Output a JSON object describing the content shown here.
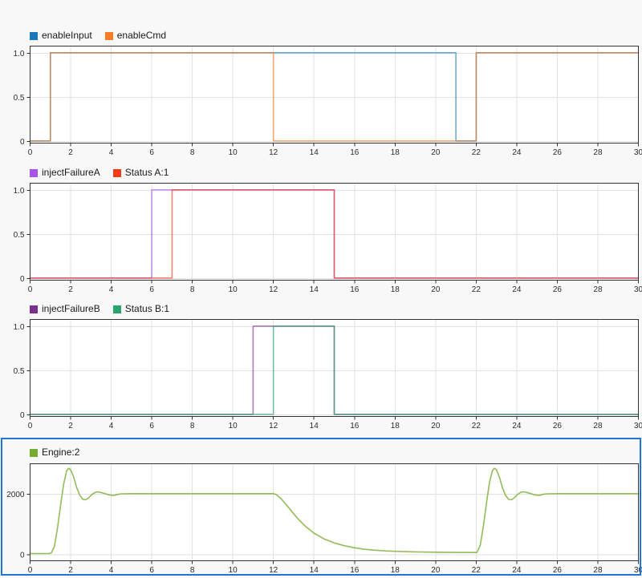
{
  "window": {
    "background": "#f8f8f8",
    "plot_background": "#ffffff",
    "selection_color": "#2374d9",
    "selected_chart": "Engine:2"
  },
  "x_axis": {
    "min": 0,
    "max": 30,
    "ticks": [
      0,
      2,
      4,
      6,
      8,
      10,
      12,
      14,
      16,
      18,
      20,
      22,
      24,
      26,
      28,
      30
    ],
    "tick_labels": [
      "0",
      "2",
      "4",
      "6",
      "8",
      "10",
      "12",
      "14",
      "16",
      "18",
      "20",
      "22",
      "24",
      "26",
      "28",
      "30"
    ]
  },
  "chart_data": [
    {
      "type": "line",
      "title": "enableInput / enableCmd",
      "selected": false,
      "legend": [
        {
          "label": "enableInput",
          "color": "#1878be"
        },
        {
          "label": "enableCmd",
          "color": "#f87b27"
        }
      ],
      "ylim": [
        -0.02,
        1.08
      ],
      "y_ticks": [
        {
          "value": 0,
          "label": "0"
        },
        {
          "value": 0.5,
          "label": "0.5"
        },
        {
          "value": 1,
          "label": "1.0"
        }
      ],
      "series": [
        {
          "name": "enableInput",
          "color": "#1878be",
          "opacity": 0.62,
          "points": [
            [
              0,
              0
            ],
            [
              1,
              0
            ],
            [
              1,
              1
            ],
            [
              21,
              1
            ],
            [
              21,
              0
            ],
            [
              22,
              0
            ],
            [
              22,
              1
            ],
            [
              30,
              1
            ]
          ]
        },
        {
          "name": "enableCmd",
          "color": "#f87b27",
          "opacity": 0.62,
          "points": [
            [
              0,
              0
            ],
            [
              1,
              0
            ],
            [
              1,
              1
            ],
            [
              12,
              1
            ],
            [
              12,
              0
            ],
            [
              22,
              0
            ],
            [
              22,
              1
            ],
            [
              30,
              1
            ]
          ]
        }
      ]
    },
    {
      "type": "line",
      "title": "injectFailureA / Status A:1",
      "selected": false,
      "legend": [
        {
          "label": "injectFailureA",
          "color": "#a953ef"
        },
        {
          "label": "Status A:1",
          "color": "#f23a16"
        }
      ],
      "ylim": [
        -0.02,
        1.08
      ],
      "y_ticks": [
        {
          "value": 0,
          "label": "0"
        },
        {
          "value": 0.5,
          "label": "0.5"
        },
        {
          "value": 1,
          "label": "1.0"
        }
      ],
      "series": [
        {
          "name": "injectFailureA",
          "color": "#a953ef",
          "opacity": 0.62,
          "points": [
            [
              0,
              0
            ],
            [
              6,
              0
            ],
            [
              6,
              1
            ],
            [
              15,
              1
            ],
            [
              15,
              0
            ],
            [
              30,
              0
            ]
          ]
        },
        {
          "name": "Status A:1",
          "color": "#f23a16",
          "opacity": 0.62,
          "points": [
            [
              0,
              0
            ],
            [
              7,
              0
            ],
            [
              7,
              1
            ],
            [
              15,
              1
            ],
            [
              15,
              0
            ],
            [
              30,
              0
            ]
          ]
        }
      ]
    },
    {
      "type": "line",
      "title": "injectFailureB / Status B:1",
      "selected": false,
      "legend": [
        {
          "label": "injectFailureB",
          "color": "#7b2f8e"
        },
        {
          "label": "Status B:1",
          "color": "#28a56d"
        }
      ],
      "ylim": [
        -0.02,
        1.08
      ],
      "y_ticks": [
        {
          "value": 0,
          "label": "0"
        },
        {
          "value": 0.5,
          "label": "0.5"
        },
        {
          "value": 1,
          "label": "1.0"
        }
      ],
      "series": [
        {
          "name": "injectFailureB",
          "color": "#7b2f8e",
          "opacity": 0.62,
          "points": [
            [
              0,
              0
            ],
            [
              11,
              0
            ],
            [
              11,
              1
            ],
            [
              15,
              1
            ],
            [
              15,
              0
            ],
            [
              30,
              0
            ]
          ]
        },
        {
          "name": "Status B:1",
          "color": "#28a56d",
          "opacity": 0.62,
          "points": [
            [
              0,
              0
            ],
            [
              12,
              0
            ],
            [
              12,
              1
            ],
            [
              15,
              1
            ],
            [
              15,
              0
            ],
            [
              30,
              0
            ]
          ]
        }
      ]
    },
    {
      "type": "line",
      "title": "Engine:2",
      "selected": true,
      "legend": [
        {
          "label": "Engine:2",
          "color": "#76ac2f"
        }
      ],
      "ylim": [
        -200,
        3000
      ],
      "y_ticks": [
        {
          "value": 0,
          "label": "0"
        },
        {
          "value": 2000,
          "label": "2000"
        }
      ],
      "series": [
        {
          "name": "Engine:2",
          "color": "#77ac30",
          "opacity": 0.8,
          "points": [
            [
              0,
              25
            ],
            [
              0.95,
              25
            ],
            [
              1.05,
              45
            ],
            [
              1.2,
              260
            ],
            [
              1.35,
              860
            ],
            [
              1.5,
              1600
            ],
            [
              1.65,
              2300
            ],
            [
              1.8,
              2750
            ],
            [
              1.9,
              2840
            ],
            [
              2.0,
              2790
            ],
            [
              2.15,
              2550
            ],
            [
              2.3,
              2200
            ],
            [
              2.45,
              1950
            ],
            [
              2.6,
              1815
            ],
            [
              2.75,
              1800
            ],
            [
              2.9,
              1870
            ],
            [
              3.05,
              1975
            ],
            [
              3.2,
              2040
            ],
            [
              3.35,
              2060
            ],
            [
              3.5,
              2040
            ],
            [
              3.7,
              2000
            ],
            [
              3.85,
              1965
            ],
            [
              4.0,
              1950
            ],
            [
              4.15,
              1945
            ],
            [
              4.3,
              1975
            ],
            [
              4.5,
              1995
            ],
            [
              5.0,
              2000
            ],
            [
              12.0,
              2000
            ],
            [
              12.15,
              1965
            ],
            [
              12.4,
              1820
            ],
            [
              12.8,
              1500
            ],
            [
              13.2,
              1180
            ],
            [
              13.6,
              910
            ],
            [
              14.0,
              700
            ],
            [
              14.5,
              505
            ],
            [
              15.0,
              375
            ],
            [
              15.5,
              285
            ],
            [
              16.0,
              215
            ],
            [
              16.5,
              165
            ],
            [
              17.0,
              135
            ],
            [
              17.5,
              112
            ],
            [
              18.0,
              98
            ],
            [
              19.0,
              80
            ],
            [
              20.0,
              70
            ],
            [
              21.0,
              63
            ],
            [
              22.0,
              60
            ],
            [
              22.05,
              72
            ],
            [
              22.2,
              300
            ],
            [
              22.35,
              900
            ],
            [
              22.5,
              1650
            ],
            [
              22.65,
              2350
            ],
            [
              22.8,
              2760
            ],
            [
              22.9,
              2840
            ],
            [
              23.0,
              2790
            ],
            [
              23.15,
              2540
            ],
            [
              23.3,
              2190
            ],
            [
              23.45,
              1945
            ],
            [
              23.6,
              1810
            ],
            [
              23.75,
              1800
            ],
            [
              23.9,
              1875
            ],
            [
              24.05,
              1980
            ],
            [
              24.2,
              2045
            ],
            [
              24.35,
              2060
            ],
            [
              24.5,
              2040
            ],
            [
              24.7,
              2000
            ],
            [
              24.85,
              1965
            ],
            [
              25.0,
              1950
            ],
            [
              25.15,
              1948
            ],
            [
              25.3,
              1978
            ],
            [
              25.5,
              1996
            ],
            [
              26.0,
              2000
            ],
            [
              30.0,
              2000
            ]
          ]
        }
      ]
    }
  ]
}
